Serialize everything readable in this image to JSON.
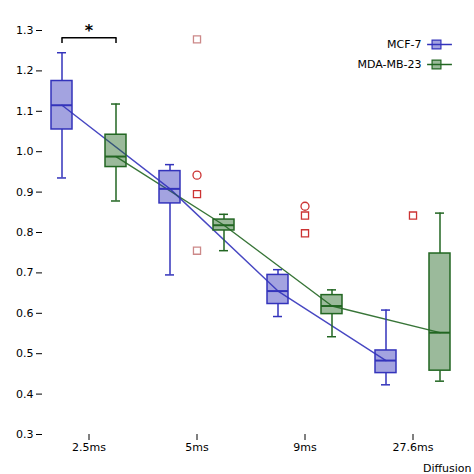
{
  "chart_data": {
    "type": "box",
    "x_label": "Diffusion",
    "categories": [
      "2.5ms",
      "5ms",
      "9ms",
      "27.6ms"
    ],
    "series": [
      {
        "name": "MCF-7",
        "color": "#3333bb",
        "boxes": [
          {
            "whislo": 0.935,
            "q1": 1.055,
            "med": 1.115,
            "q3": 1.175,
            "whishi": 1.245
          },
          {
            "whislo": 0.695,
            "q1": 0.872,
            "med": 0.908,
            "q3": 0.952,
            "whishi": 0.968
          },
          {
            "whislo": 0.592,
            "q1": 0.623,
            "med": 0.655,
            "q3": 0.695,
            "whishi": 0.708
          },
          {
            "whislo": 0.423,
            "q1": 0.452,
            "med": 0.483,
            "q3": 0.508,
            "whishi": 0.608
          }
        ]
      },
      {
        "name": "MDA-MB-23",
        "color": "#226622",
        "boxes": [
          {
            "whislo": 0.878,
            "q1": 0.962,
            "med": 0.988,
            "q3": 1.042,
            "whishi": 1.118
          },
          {
            "whislo": 0.755,
            "q1": 0.805,
            "med": 0.818,
            "q3": 0.832,
            "whishi": 0.845
          },
          {
            "whislo": 0.542,
            "q1": 0.598,
            "med": 0.618,
            "q3": 0.645,
            "whishi": 0.658
          },
          {
            "whislo": 0.432,
            "q1": 0.458,
            "med": 0.552,
            "q3": 0.748,
            "whishi": 0.848
          }
        ]
      }
    ],
    "outliers": [
      {
        "color": "#cc3333",
        "marker": "circle",
        "points": [
          {
            "x": "5ms",
            "y": 0.942
          },
          {
            "x": "9ms",
            "y": 0.865
          }
        ]
      },
      {
        "color": "#cc3333",
        "marker": "square",
        "points": [
          {
            "x": "5ms",
            "y": 0.895
          },
          {
            "x": "9ms",
            "y": 0.842
          },
          {
            "x": "9ms",
            "y": 0.798
          },
          {
            "x": "27.6ms",
            "y": 0.842
          }
        ]
      },
      {
        "color": "#cc8888",
        "marker": "square",
        "points": [
          {
            "x": "5ms",
            "y": 0.755
          },
          {
            "x": "5ms",
            "y": 1.278
          }
        ]
      }
    ],
    "annotations": [
      {
        "text": "*",
        "x": "2.5ms",
        "y": 1.282
      }
    ],
    "ylim": [
      0.3,
      1.3
    ],
    "yticks": [
      0.3,
      0.4,
      0.5,
      0.6,
      0.7,
      0.8,
      0.9,
      {
        "value": 1,
        "label": "1.0"
      },
      1.1,
      1.2,
      1.3
    ],
    "legend": "upper right",
    "grid": false
  }
}
